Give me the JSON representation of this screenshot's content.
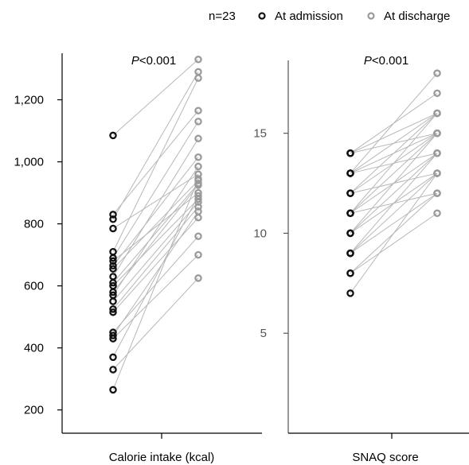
{
  "legend": {
    "n_label": "n=23",
    "admission_label": "At admission",
    "discharge_label": "At discharge"
  },
  "colors": {
    "admission": "#111111",
    "discharge": "#9a9a9a",
    "connector": "#b8b8b8",
    "axis": "#000000"
  },
  "chart_data": [
    {
      "type": "scatter",
      "title": "",
      "annotation": {
        "p_symbol": "P",
        "p_rest": "<0.001"
      },
      "xlabel": "Calorie intake (kcal)",
      "ylabel": "",
      "ylim": [
        125,
        1350
      ],
      "yticks": [
        200,
        400,
        600,
        800,
        1000,
        1200
      ],
      "ytick_labels": [
        "200",
        "400",
        "600",
        "800",
        "1,000",
        "1,200"
      ],
      "grid": false,
      "series": [
        {
          "name": "At admission",
          "values": [
            1085,
            830,
            815,
            785,
            710,
            690,
            680,
            665,
            655,
            630,
            610,
            600,
            580,
            570,
            550,
            525,
            515,
            450,
            440,
            430,
            370,
            330,
            265
          ]
        },
        {
          "name": "At discharge",
          "values": [
            1330,
            1165,
            1290,
            960,
            1270,
            1130,
            900,
            1015,
            940,
            1075,
            930,
            880,
            925,
            985,
            870,
            855,
            820,
            760,
            840,
            700,
            890,
            625,
            945
          ]
        }
      ]
    },
    {
      "type": "scatter",
      "title": "",
      "annotation": {
        "p_symbol": "P",
        "p_rest": "<0.001"
      },
      "xlabel": "SNAQ score",
      "ylabel": "",
      "ylim": [
        0,
        19
      ],
      "yticks": [
        5,
        10,
        15
      ],
      "ytick_labels": [
        "5",
        "10",
        "15"
      ],
      "grid": false,
      "series": [
        {
          "name": "At admission",
          "values": [
            14,
            14,
            14,
            13,
            13,
            13,
            13,
            12,
            12,
            12,
            11,
            11,
            11,
            11,
            10,
            10,
            10,
            9,
            9,
            9,
            8,
            8,
            7
          ]
        },
        {
          "name": "At discharge",
          "values": [
            15,
            17,
            16,
            16,
            18,
            15,
            14,
            15,
            16,
            13,
            15,
            12,
            14,
            16,
            13,
            14,
            15,
            13,
            12,
            14,
            11,
            12,
            13
          ]
        }
      ]
    }
  ]
}
